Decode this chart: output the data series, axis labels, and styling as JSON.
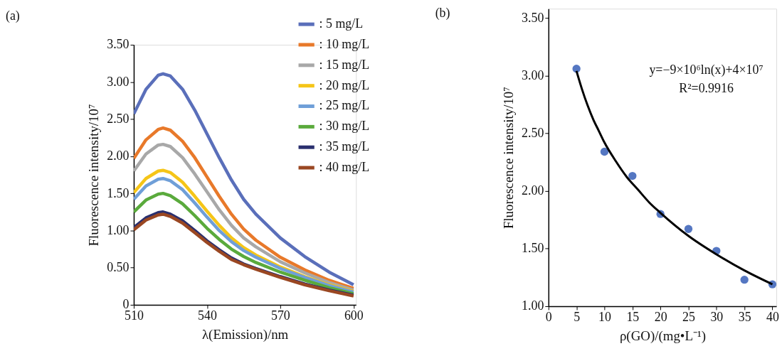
{
  "chart_data": [
    {
      "type": "line",
      "xlabel": "λ(Emission)/nm",
      "ylabel": "Fluorescence intensity/10⁷",
      "annotations": [
        "(a)"
      ],
      "legend": "top right",
      "grid": false,
      "x": [
        510,
        515,
        520,
        522,
        525,
        530,
        535,
        540,
        545,
        550,
        555,
        560,
        570,
        580,
        590,
        600
      ],
      "series": [
        {
          "name": ": 5 mg/L",
          "color": "#5a6fba",
          "values": [
            2.57,
            2.9,
            3.09,
            3.11,
            3.08,
            2.9,
            2.62,
            2.3,
            1.98,
            1.68,
            1.42,
            1.22,
            0.9,
            0.65,
            0.44,
            0.27
          ]
        },
        {
          "name": ": 10 mg/L",
          "color": "#e8792a",
          "values": [
            1.97,
            2.22,
            2.36,
            2.38,
            2.35,
            2.2,
            1.98,
            1.72,
            1.46,
            1.22,
            1.02,
            0.87,
            0.64,
            0.47,
            0.33,
            0.22
          ]
        },
        {
          "name": ": 15 mg/L",
          "color": "#a8a8a8",
          "values": [
            1.8,
            2.03,
            2.15,
            2.16,
            2.13,
            1.98,
            1.76,
            1.52,
            1.28,
            1.07,
            0.9,
            0.78,
            0.58,
            0.43,
            0.3,
            0.2
          ]
        },
        {
          "name": ": 20 mg/L",
          "color": "#f5c518",
          "values": [
            1.51,
            1.7,
            1.8,
            1.81,
            1.78,
            1.65,
            1.46,
            1.26,
            1.07,
            0.9,
            0.77,
            0.67,
            0.51,
            0.38,
            0.27,
            0.18
          ]
        },
        {
          "name": ": 25 mg/L",
          "color": "#6f9fd8",
          "values": [
            1.42,
            1.6,
            1.69,
            1.7,
            1.67,
            1.55,
            1.37,
            1.18,
            1.0,
            0.85,
            0.73,
            0.64,
            0.49,
            0.37,
            0.26,
            0.17
          ]
        },
        {
          "name": ": 30 mg/L",
          "color": "#5aaa3c",
          "values": [
            1.25,
            1.41,
            1.49,
            1.5,
            1.47,
            1.36,
            1.2,
            1.03,
            0.88,
            0.75,
            0.65,
            0.57,
            0.44,
            0.33,
            0.23,
            0.15
          ]
        },
        {
          "name": ": 35 mg/L",
          "color": "#2a2f6e",
          "values": [
            1.04,
            1.17,
            1.24,
            1.25,
            1.22,
            1.13,
            1.0,
            0.86,
            0.74,
            0.63,
            0.55,
            0.49,
            0.38,
            0.28,
            0.2,
            0.13
          ]
        },
        {
          "name": ": 40 mg/L",
          "color": "#9a4722",
          "values": [
            1.01,
            1.14,
            1.21,
            1.22,
            1.19,
            1.1,
            0.97,
            0.84,
            0.72,
            0.61,
            0.54,
            0.48,
            0.37,
            0.27,
            0.19,
            0.12
          ]
        }
      ],
      "xlim": [
        510,
        601
      ],
      "xticks": [
        510,
        540,
        570,
        600
      ],
      "ylim": [
        0,
        3.5
      ],
      "yticks": [
        0,
        {
          "value": 0.5,
          "label": "0.50"
        },
        {
          "value": 1,
          "label": "1.00"
        },
        {
          "value": 1.5,
          "label": "1.50"
        },
        {
          "value": 2,
          "label": "2.00"
        },
        {
          "value": 2.5,
          "label": "2.50"
        },
        {
          "value": 3,
          "label": "3.00"
        },
        {
          "value": 3.5,
          "label": "3.50"
        }
      ]
    },
    {
      "type": "scatter",
      "xlabel": "ρ(GO)/(mg•L⁻¹)",
      "ylabel": "Fluorescence intensity/10⁷",
      "annotations": [
        "(b)",
        "y=−9×10⁶ln(x)+4×10⁷",
        "R²=0.9916"
      ],
      "grid": false,
      "x": [
        5,
        10,
        15,
        20,
        25,
        30,
        35,
        40
      ],
      "series": [
        {
          "type": "scatter",
          "color": "#5577c2",
          "values": [
            3.06,
            2.34,
            2.13,
            1.8,
            1.67,
            1.48,
            1.23,
            1.19
          ]
        },
        {
          "type": "line",
          "color": "#000000",
          "x": [
            5,
            6,
            7,
            8,
            9,
            10,
            12,
            14,
            16,
            18,
            20,
            25,
            30,
            35,
            40
          ],
          "values": [
            3.04,
            2.88,
            2.74,
            2.62,
            2.52,
            2.42,
            2.26,
            2.12,
            2.01,
            1.9,
            1.81,
            1.61,
            1.45,
            1.31,
            1.19
          ]
        }
      ],
      "xlim": [
        0,
        40.7
      ],
      "xticks": [
        0,
        5,
        10,
        15,
        20,
        25,
        30,
        35,
        40
      ],
      "ylim": [
        1,
        3.58
      ],
      "yticks": [
        {
          "value": 1,
          "label": "1.00"
        },
        {
          "value": 1.5,
          "label": "1.50"
        },
        {
          "value": 2,
          "label": "2.00"
        },
        {
          "value": 2.5,
          "label": "2.50"
        },
        {
          "value": 3,
          "label": "3.00"
        },
        {
          "value": 3.5,
          "label": "3.50"
        }
      ]
    }
  ]
}
